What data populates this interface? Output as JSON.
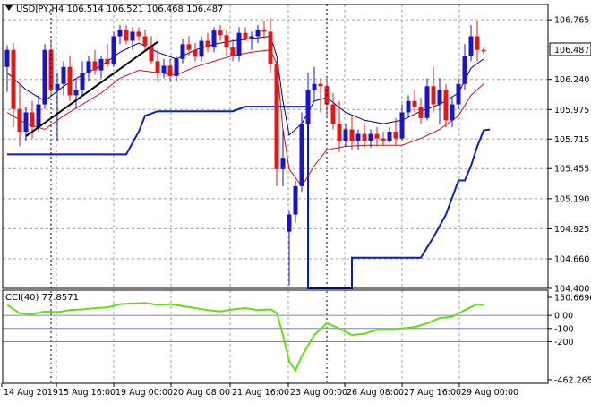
{
  "colors": {
    "bull": "#1a14c4",
    "bear": "#e01818",
    "ma_dark": "#000080",
    "ma_red": "#cc1010",
    "support": "#0a1fb8",
    "cci": "#66dd11",
    "grid": "#9aa0a8",
    "axis": "#000000",
    "level": "#8080c0",
    "price_box": "#ffffff"
  },
  "chart_data": [
    {
      "type": "line",
      "title": "USDJPY,H4  106.514 106.521 106.468 106.487",
      "symbol": "USDJPY,H4",
      "ohlc": {
        "open": "106.514",
        "high": "106.521",
        "low": "106.468",
        "close": "106.487"
      },
      "current_price": "106.487",
      "y_ticks": [
        "106.765",
        "106.240",
        "105.975",
        "105.715",
        "105.455",
        "105.190",
        "104.925",
        "104.660",
        "104.400"
      ],
      "ylim": [
        104.4,
        106.9
      ],
      "x_ticks": [
        "14 Aug 2019",
        "15 Aug 16:00",
        "19 Aug 00:00",
        "20 Aug 08:00",
        "21 Aug 16:00",
        "23 Aug 00:00",
        "26 Aug 08:00",
        "27 Aug 16:00",
        "29 Aug 00:00"
      ],
      "grid": true,
      "candles": [
        [
          106.35,
          106.54,
          106.13,
          106.5
        ],
        [
          106.5,
          106.56,
          105.82,
          105.98
        ],
        [
          105.98,
          106.2,
          105.65,
          105.78
        ],
        [
          105.78,
          106.0,
          105.7,
          105.95
        ],
        [
          105.95,
          106.05,
          105.72,
          105.82
        ],
        [
          105.82,
          106.1,
          105.78,
          106.02
        ],
        [
          106.02,
          106.55,
          105.98,
          106.5
        ],
        [
          106.5,
          106.6,
          106.1,
          106.15
        ],
        [
          106.15,
          106.3,
          105.7,
          106.2
        ],
        [
          106.2,
          106.4,
          106.1,
          106.35
        ],
        [
          106.35,
          106.45,
          106.05,
          106.1
        ],
        [
          106.1,
          106.25,
          105.98,
          106.15
        ],
        [
          106.15,
          106.4,
          106.1,
          106.3
        ],
        [
          106.3,
          106.45,
          106.22,
          106.4
        ],
        [
          106.4,
          106.5,
          106.28,
          106.32
        ],
        [
          106.32,
          106.45,
          106.25,
          106.42
        ],
        [
          106.42,
          106.55,
          106.35,
          106.37
        ],
        [
          106.37,
          106.66,
          106.35,
          106.62
        ],
        [
          106.62,
          106.72,
          106.55,
          106.68
        ],
        [
          106.68,
          106.72,
          106.55,
          106.58
        ],
        [
          106.58,
          106.7,
          106.5,
          106.66
        ],
        [
          106.66,
          106.7,
          106.58,
          106.62
        ],
        [
          106.62,
          106.68,
          106.5,
          106.54
        ],
        [
          106.54,
          106.62,
          106.38,
          106.4
        ],
        [
          106.4,
          106.5,
          106.22,
          106.3
        ],
        [
          106.3,
          106.42,
          106.25,
          106.36
        ],
        [
          106.36,
          106.42,
          106.22,
          106.27
        ],
        [
          106.27,
          106.45,
          106.22,
          106.42
        ],
        [
          106.42,
          106.6,
          106.38,
          106.55
        ],
        [
          106.55,
          106.62,
          106.45,
          106.5
        ],
        [
          106.5,
          106.56,
          106.4,
          106.44
        ],
        [
          106.44,
          106.62,
          106.4,
          106.58
        ],
        [
          106.58,
          106.65,
          106.48,
          106.52
        ],
        [
          106.52,
          106.7,
          106.48,
          106.67
        ],
        [
          106.67,
          106.72,
          106.58,
          106.63
        ],
        [
          106.63,
          106.68,
          106.45,
          106.52
        ],
        [
          106.52,
          106.6,
          106.4,
          106.45
        ],
        [
          106.45,
          106.7,
          106.4,
          106.65
        ],
        [
          106.65,
          106.7,
          106.58,
          106.6
        ],
        [
          106.6,
          106.66,
          106.5,
          106.62
        ],
        [
          106.62,
          106.72,
          106.56,
          106.68
        ],
        [
          106.68,
          106.75,
          106.6,
          106.66
        ],
        [
          106.66,
          106.78,
          106.3,
          106.38
        ],
        [
          106.38,
          106.4,
          105.3,
          105.45
        ],
        [
          105.45,
          105.8,
          105.3,
          105.55
        ],
        [
          104.9,
          105.08,
          104.43,
          105.05
        ],
        [
          105.05,
          105.35,
          104.98,
          105.3
        ],
        [
          105.3,
          105.95,
          105.25,
          105.85
        ],
        [
          105.85,
          106.3,
          105.8,
          106.15
        ],
        [
          106.15,
          106.35,
          106.05,
          106.2
        ],
        [
          106.2,
          106.25,
          105.95,
          106.18
        ],
        [
          106.18,
          106.25,
          105.92,
          106.02
        ],
        [
          106.02,
          106.12,
          105.8,
          105.85
        ],
        [
          105.85,
          106.05,
          105.6,
          105.7
        ],
        [
          105.7,
          105.85,
          105.65,
          105.8
        ],
        [
          105.8,
          105.92,
          105.62,
          105.7
        ],
        [
          105.7,
          105.8,
          105.62,
          105.76
        ],
        [
          105.76,
          105.85,
          105.64,
          105.7
        ],
        [
          105.7,
          105.8,
          105.64,
          105.76
        ],
        [
          105.76,
          105.82,
          105.65,
          105.72
        ],
        [
          105.72,
          105.78,
          105.66,
          105.7
        ],
        [
          105.7,
          105.82,
          105.68,
          105.78
        ],
        [
          105.78,
          105.9,
          105.66,
          105.72
        ],
        [
          105.72,
          106.02,
          105.7,
          105.95
        ],
        [
          105.95,
          106.1,
          105.9,
          106.05
        ],
        [
          106.05,
          106.15,
          105.95,
          106.0
        ],
        [
          106.0,
          106.08,
          105.85,
          105.9
        ],
        [
          105.9,
          106.25,
          105.88,
          106.18
        ],
        [
          106.18,
          106.35,
          105.95,
          106.02
        ],
        [
          106.02,
          106.25,
          105.85,
          106.15
        ],
        [
          106.15,
          106.2,
          105.82,
          105.88
        ],
        [
          105.88,
          106.08,
          105.82,
          106.02
        ],
        [
          106.02,
          106.25,
          105.98,
          106.2
        ],
        [
          106.2,
          106.55,
          106.15,
          106.45
        ],
        [
          106.45,
          106.72,
          106.4,
          106.62
        ],
        [
          106.62,
          106.75,
          106.4,
          106.5
        ],
        [
          106.5,
          106.52,
          106.46,
          106.487
        ]
      ],
      "ma_dark": [
        [
          0,
          106.3
        ],
        [
          3,
          106.15
        ],
        [
          6,
          106.05
        ],
        [
          9,
          106.18
        ],
        [
          12,
          106.28
        ],
        [
          15,
          106.36
        ],
        [
          18,
          106.48
        ],
        [
          21,
          106.56
        ],
        [
          24,
          106.48
        ],
        [
          27,
          106.42
        ],
        [
          30,
          106.5
        ],
        [
          33,
          106.55
        ],
        [
          36,
          106.58
        ],
        [
          39,
          106.6
        ],
        [
          42,
          106.62
        ],
        [
          43,
          106.45
        ],
        [
          44,
          106.05
        ],
        [
          45,
          105.75
        ],
        [
          47,
          105.85
        ],
        [
          49,
          106.05
        ],
        [
          51,
          106.08
        ],
        [
          54,
          105.95
        ],
        [
          57,
          105.88
        ],
        [
          60,
          105.85
        ],
        [
          63,
          105.88
        ],
        [
          66,
          105.96
        ],
        [
          69,
          106.02
        ],
        [
          72,
          106.12
        ],
        [
          74,
          106.34
        ],
        [
          76,
          106.42
        ]
      ],
      "ma_red": [
        [
          0,
          105.95
        ],
        [
          3,
          105.85
        ],
        [
          6,
          105.8
        ],
        [
          9,
          105.92
        ],
        [
          12,
          106.02
        ],
        [
          15,
          106.12
        ],
        [
          18,
          106.25
        ],
        [
          21,
          106.32
        ],
        [
          24,
          106.3
        ],
        [
          27,
          106.28
        ],
        [
          30,
          106.35
        ],
        [
          33,
          106.4
        ],
        [
          36,
          106.45
        ],
        [
          39,
          106.48
        ],
        [
          42,
          106.5
        ],
        [
          43,
          106.38
        ],
        [
          44,
          105.8
        ],
        [
          45,
          105.45
        ],
        [
          47,
          105.3
        ],
        [
          49,
          105.48
        ],
        [
          51,
          105.62
        ],
        [
          54,
          105.65
        ],
        [
          57,
          105.66
        ],
        [
          60,
          105.66
        ],
        [
          63,
          105.66
        ],
        [
          66,
          105.72
        ],
        [
          69,
          105.8
        ],
        [
          72,
          105.92
        ],
        [
          74,
          106.1
        ],
        [
          76,
          106.2
        ]
      ],
      "support": [
        [
          0,
          105.58
        ],
        [
          19,
          105.58
        ],
        [
          21,
          105.78
        ],
        [
          22,
          105.92
        ],
        [
          24,
          105.96
        ],
        [
          36,
          105.96
        ],
        [
          38,
          106.0
        ],
        [
          48,
          106.0
        ],
        [
          48,
          104.4
        ],
        [
          55,
          104.4
        ],
        [
          55,
          104.67
        ],
        [
          66,
          104.67
        ],
        [
          68,
          104.85
        ],
        [
          70,
          105.05
        ],
        [
          72,
          105.35
        ],
        [
          73,
          105.35
        ],
        [
          74,
          105.48
        ],
        [
          75,
          105.65
        ],
        [
          76,
          105.79
        ],
        [
          77,
          105.8
        ]
      ],
      "trendline": [
        [
          3,
          105.74
        ],
        [
          24,
          106.57
        ]
      ],
      "event_marker_bars": [
        7,
        51
      ]
    },
    {
      "type": "line",
      "title": "CCI(40) 77.8571",
      "indicator": "CCI(40)",
      "value": "77.8571",
      "y_ticks": [
        "150.6696",
        "0.00",
        "-100",
        "-200",
        "-462.265"
      ],
      "levels": [
        "-100",
        "-200"
      ],
      "ylim": [
        -462.265,
        150.6696
      ],
      "cci": [
        [
          0,
          80
        ],
        [
          2,
          15
        ],
        [
          4,
          10
        ],
        [
          6,
          30
        ],
        [
          8,
          25
        ],
        [
          10,
          40
        ],
        [
          12,
          45
        ],
        [
          14,
          55
        ],
        [
          16,
          60
        ],
        [
          18,
          85
        ],
        [
          20,
          90
        ],
        [
          22,
          95
        ],
        [
          24,
          80
        ],
        [
          26,
          85
        ],
        [
          28,
          70
        ],
        [
          30,
          55
        ],
        [
          32,
          40
        ],
        [
          34,
          30
        ],
        [
          36,
          45
        ],
        [
          38,
          55
        ],
        [
          40,
          40
        ],
        [
          42,
          45
        ],
        [
          43,
          20
        ],
        [
          44,
          -150
        ],
        [
          45,
          -350
        ],
        [
          46,
          -420
        ],
        [
          47,
          -310
        ],
        [
          49,
          -150
        ],
        [
          51,
          -60
        ],
        [
          53,
          -100
        ],
        [
          55,
          -150
        ],
        [
          57,
          -140
        ],
        [
          59,
          -110
        ],
        [
          61,
          -110
        ],
        [
          63,
          -100
        ],
        [
          65,
          -90
        ],
        [
          67,
          -60
        ],
        [
          69,
          -20
        ],
        [
          71,
          -10
        ],
        [
          73,
          40
        ],
        [
          75,
          85
        ],
        [
          76,
          78
        ]
      ]
    }
  ]
}
